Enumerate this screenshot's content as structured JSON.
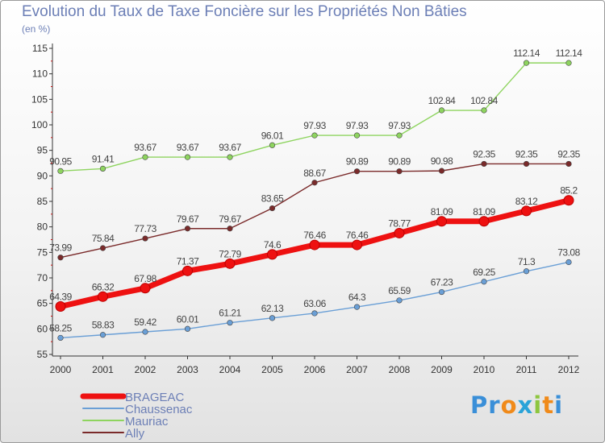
{
  "header": {
    "title": "Evolution du Taux de Taxe Foncière sur les Propriétés Non Bâties",
    "unit": "(en %)"
  },
  "logo": {
    "text": "Proxiti",
    "letters": [
      "P",
      "r",
      "o",
      "x",
      "i",
      "t",
      "i"
    ],
    "colors": [
      "#3a8fd8",
      "#3a8fd8",
      "#f08a1a",
      "#2aa3d8",
      "#8dc63f",
      "#f08a1a",
      "#3a8fd8"
    ]
  },
  "chart_data": {
    "type": "line",
    "title": "Evolution du Taux de Taxe Foncière sur les Propriétés Non Bâties",
    "ylabel": "(en %)",
    "xlabel": "",
    "x": [
      "2000",
      "2001",
      "2002",
      "2003",
      "2004",
      "2005",
      "2006",
      "2007",
      "2008",
      "2009",
      "2010",
      "2011",
      "2012"
    ],
    "ylim": [
      55,
      115
    ],
    "yticks": [
      55,
      60,
      65,
      70,
      75,
      80,
      85,
      90,
      95,
      100,
      105,
      110,
      115
    ],
    "grid": false,
    "legend_position": "bottom-left",
    "series": [
      {
        "name": "BRAGEAC",
        "color": "#ee1111",
        "emphasis": true,
        "values": [
          64.39,
          66.32,
          67.98,
          71.37,
          72.79,
          74.6,
          76.46,
          76.46,
          78.77,
          81.09,
          81.09,
          83.12,
          85.2
        ],
        "labels": [
          "64.39",
          "66.32",
          "67.98",
          "71.37",
          "72.79",
          "74.6",
          "76.46",
          "76.46",
          "78.77",
          "81.09",
          "81.09",
          "83.12",
          "85.2"
        ]
      },
      {
        "name": "Chaussenac",
        "color": "#6a9fd6",
        "emphasis": false,
        "values": [
          58.25,
          58.83,
          59.42,
          60.01,
          61.21,
          62.13,
          63.06,
          64.3,
          65.59,
          67.23,
          69.25,
          71.3,
          73.08
        ],
        "labels": [
          "58.25",
          "58.83",
          "59.42",
          "60.01",
          "61.21",
          "62.13",
          "63.06",
          "64.3",
          "65.59",
          "67.23",
          "69.25",
          "71.3",
          "73.08"
        ]
      },
      {
        "name": "Mauriac",
        "color": "#8ed45f",
        "emphasis": false,
        "values": [
          90.95,
          91.41,
          93.67,
          93.67,
          93.67,
          96.01,
          97.93,
          97.93,
          97.93,
          102.84,
          102.84,
          112.14,
          112.14
        ],
        "labels": [
          "90.95",
          "91.41",
          "93.67",
          "93.67",
          "93.67",
          "96.01",
          "97.93",
          "97.93",
          "97.93",
          "102.84",
          "102.84",
          "112.14",
          "112.14"
        ]
      },
      {
        "name": "Ally",
        "color": "#7a2a2a",
        "emphasis": false,
        "values": [
          73.99,
          75.84,
          77.73,
          79.67,
          79.67,
          83.65,
          88.67,
          90.89,
          90.89,
          90.98,
          92.35,
          92.35,
          92.35
        ],
        "labels": [
          "73.99",
          "75.84",
          "77.73",
          "79.67",
          "79.67",
          "83.65",
          "88.67",
          "90.89",
          "90.89",
          "90.98",
          "92.35",
          "92.35",
          "92.35"
        ]
      }
    ]
  }
}
